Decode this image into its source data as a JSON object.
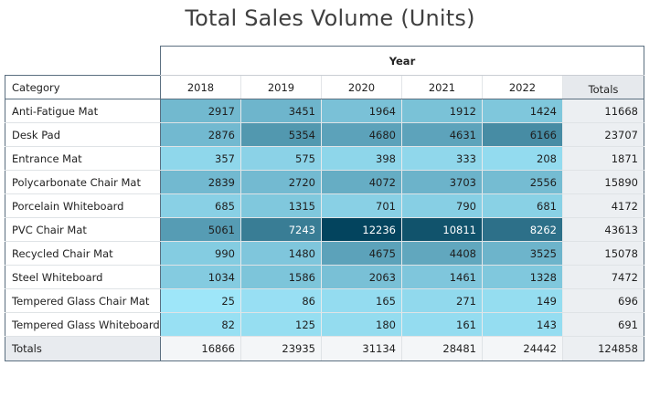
{
  "chart_data": {
    "type": "table",
    "title": "Total Sales Volume (Units)",
    "column_group_label": "Year",
    "row_header": "Category",
    "totals_label": "Totals",
    "columns": [
      "2018",
      "2019",
      "2020",
      "2021",
      "2022"
    ],
    "rows": [
      {
        "category": "Anti-Fatigue Mat",
        "values": [
          2917,
          3451,
          1964,
          1912,
          1424
        ],
        "total": 11668
      },
      {
        "category": "Desk Pad",
        "values": [
          2876,
          5354,
          4680,
          4631,
          6166
        ],
        "total": 23707
      },
      {
        "category": "Entrance Mat",
        "values": [
          357,
          575,
          398,
          333,
          208
        ],
        "total": 1871
      },
      {
        "category": "Polycarbonate Chair Mat",
        "values": [
          2839,
          2720,
          4072,
          3703,
          2556
        ],
        "total": 15890
      },
      {
        "category": "Porcelain Whiteboard",
        "values": [
          685,
          1315,
          701,
          790,
          681
        ],
        "total": 4172
      },
      {
        "category": "PVC Chair Mat",
        "values": [
          5061,
          7243,
          12236,
          10811,
          8262
        ],
        "total": 43613
      },
      {
        "category": "Recycled Chair Mat",
        "values": [
          990,
          1480,
          4675,
          4408,
          3525
        ],
        "total": 15078
      },
      {
        "category": "Steel Whiteboard",
        "values": [
          1034,
          1586,
          2063,
          1461,
          1328
        ],
        "total": 7472
      },
      {
        "category": "Tempered Glass Chair Mat",
        "values": [
          25,
          86,
          165,
          271,
          149
        ],
        "total": 696
      },
      {
        "category": "Tempered Glass Whiteboard",
        "values": [
          82,
          125,
          180,
          161,
          143
        ],
        "total": 691
      }
    ],
    "column_totals": [
      16866,
      23935,
      31134,
      28481,
      24442
    ],
    "grand_total": 124858,
    "color_scale": {
      "low": "#9ee6f9",
      "mid": "#6cb3ca",
      "high": "#03445e"
    }
  }
}
